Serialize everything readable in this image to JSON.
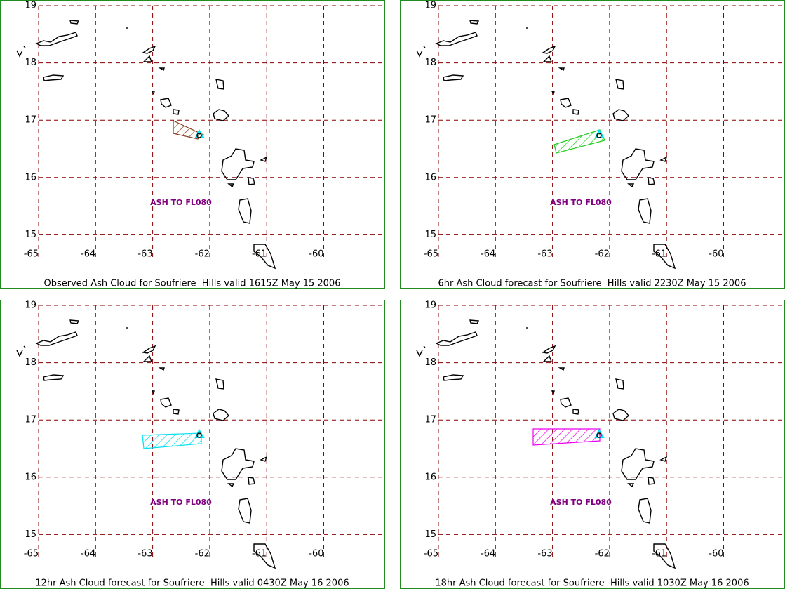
{
  "lat_ticks": [
    19,
    18,
    17,
    16,
    15
  ],
  "lon_ticks": [
    -65,
    -64,
    -63,
    -62,
    -61,
    -60
  ],
  "panels": [
    {
      "caption": "Observed Ash Cloud for Soufriere  Hills valid 1615Z May 15 2006",
      "annotation": "ASH TO FL080",
      "ash_color": "#8b3a1a"
    },
    {
      "caption": "6hr Ash Cloud forecast for Soufriere  Hills valid 2230Z May 15 2006",
      "annotation": "ASH TO FL080",
      "ash_color": "#22cc22"
    },
    {
      "caption": "12hr Ash Cloud forecast for Soufriere  Hills valid 0430Z May 16 2006",
      "annotation": "ASH TO FL080",
      "ash_color": "#00e0f0"
    },
    {
      "caption": "18hr Ash Cloud forecast for Soufriere  Hills valid 1030Z May 16 2006",
      "annotation": "ASH TO FL080",
      "ash_color": "#ee00ee"
    }
  ]
}
